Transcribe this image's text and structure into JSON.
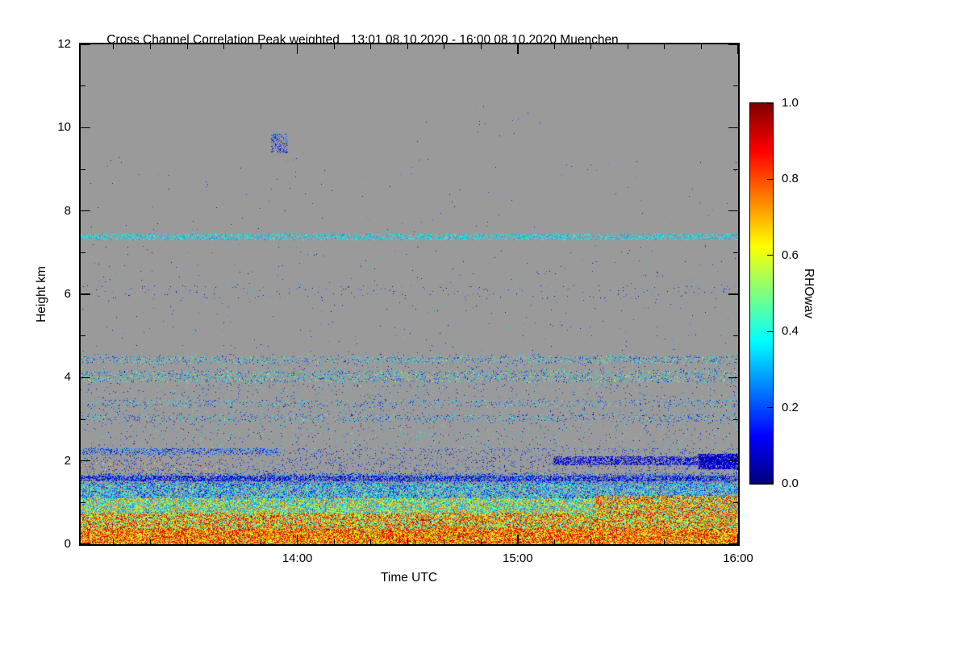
{
  "chart_data": {
    "type": "heatmap",
    "title": "Cross Channel Correlation Peak weighted",
    "title_right": "13:01 08.10.2020 - 16:00 08.10.2020 Muenchen",
    "xlabel": "Time UTC",
    "ylabel": "Height km",
    "x_range_minutes": [
      0,
      179
    ],
    "x_start_label": "13:01",
    "x_ticks": [
      {
        "label": "14:00",
        "minute": 59
      },
      {
        "label": "15:00",
        "minute": 119
      },
      {
        "label": "16:00",
        "minute": 179
      }
    ],
    "x_minor_every_minutes": 10,
    "y_range_km": [
      0,
      12
    ],
    "y_ticks": [
      "0",
      "2",
      "4",
      "6",
      "8",
      "10",
      "12"
    ],
    "y_tick_values": [
      0,
      2,
      4,
      6,
      8,
      10,
      12
    ],
    "y_minor_every_km": 1,
    "grid": false,
    "background_color": "#9a9a9a",
    "colorbar": {
      "label": "RHOwav",
      "colormap": "jet",
      "vmin": 0.0,
      "vmax": 1.0,
      "ticks": [
        "1.0",
        "0.8",
        "0.6",
        "0.4",
        "0.2",
        "0.0"
      ]
    },
    "bands": [
      {
        "name": "mid-upper-sparse",
        "y_min": 4.6,
        "y_max": 7.2,
        "density": 0.004,
        "v_min": 0.0,
        "v_max": 0.4
      },
      {
        "name": "upper-sparse",
        "y_min": 7.5,
        "y_max": 9.3,
        "density": 0.0015,
        "v_min": 0.0,
        "v_max": 0.35
      },
      {
        "name": "high-dots",
        "x_min": 0.5,
        "x_max": 0.72,
        "y_min": 9.6,
        "y_max": 10.6,
        "density": 0.002,
        "v_min": 0.05,
        "v_max": 0.3
      },
      {
        "name": "cluster-9-6km",
        "x_min": 0.29,
        "x_max": 0.315,
        "y_min": 9.4,
        "y_max": 9.85,
        "density": 0.3,
        "v_min": 0.0,
        "v_max": 0.3
      },
      {
        "name": "line-7-35km",
        "y_min": 7.3,
        "y_max": 7.45,
        "density": 0.38,
        "v_min": 0.25,
        "v_max": 0.45
      },
      {
        "name": "dots-6km",
        "y_min": 5.9,
        "y_max": 6.2,
        "density": 0.015,
        "v_min": 0.0,
        "v_max": 0.35
      },
      {
        "name": "scatter-2-3-to-4-6",
        "y_min": 2.3,
        "y_max": 4.55,
        "density": 0.03,
        "v_min": 0.0,
        "v_max": 0.5
      },
      {
        "name": "line-4-4km",
        "y_min": 4.35,
        "y_max": 4.5,
        "density": 0.16,
        "v_min": 0.1,
        "v_max": 0.55
      },
      {
        "name": "line-4-0km",
        "y_min": 3.9,
        "y_max": 4.15,
        "density": 0.18,
        "v_min": 0.1,
        "v_max": 0.6
      },
      {
        "name": "line-3-35km",
        "y_min": 3.3,
        "y_max": 3.45,
        "density": 0.1,
        "v_min": 0.05,
        "v_max": 0.5
      },
      {
        "name": "line-3-0km",
        "y_min": 2.95,
        "y_max": 3.1,
        "density": 0.12,
        "v_min": 0.05,
        "v_max": 0.5
      },
      {
        "name": "sparse-1-7-to-2-3",
        "y_min": 1.7,
        "y_max": 2.3,
        "density": 0.07,
        "v_min": 0.0,
        "v_max": 0.3
      },
      {
        "name": "line-2-2km-left",
        "x_min": 0.0,
        "x_max": 0.3,
        "y_min": 2.15,
        "y_max": 2.3,
        "density": 0.28,
        "v_min": 0.05,
        "v_max": 0.35
      },
      {
        "name": "streak-2km-right",
        "x_min": 0.72,
        "x_max": 1.0,
        "y_min": 1.9,
        "y_max": 2.1,
        "density": 0.5,
        "v_min": 0.0,
        "v_max": 0.18
      },
      {
        "name": "blob-2km-far-right",
        "x_min": 0.94,
        "x_max": 1.0,
        "y_min": 1.8,
        "y_max": 2.15,
        "density": 0.75,
        "v_min": 0.0,
        "v_max": 0.15
      },
      {
        "name": "left-warm-specks",
        "x_min": 0.0,
        "x_max": 0.22,
        "y_min": 1.35,
        "y_max": 1.95,
        "density": 0.05,
        "v_min": 0.45,
        "v_max": 1.0
      },
      {
        "name": "band-1-45-to-1-7",
        "y_min": 1.45,
        "y_max": 1.7,
        "density": 0.3,
        "v_min": 0.02,
        "v_max": 0.4
      },
      {
        "name": "dark-line-1-55",
        "y_min": 1.52,
        "y_max": 1.64,
        "density": 0.45,
        "v_min": 0.0,
        "v_max": 0.2
      },
      {
        "name": "band-1-1-to-1-45",
        "y_min": 1.1,
        "y_max": 1.45,
        "density": 0.55,
        "v_min": 0.08,
        "v_max": 0.55
      },
      {
        "name": "band-0-75-to-1-1",
        "y_min": 0.75,
        "y_max": 1.1,
        "density": 0.8,
        "v_min": 0.2,
        "v_max": 0.8
      },
      {
        "name": "right-warm-boost",
        "x_min": 0.78,
        "x_max": 1.0,
        "y_min": 0.5,
        "y_max": 1.15,
        "density": 0.55,
        "v_min": 0.5,
        "v_max": 1.0
      },
      {
        "name": "band-0-35-to-0-75",
        "y_min": 0.35,
        "y_max": 0.75,
        "density": 0.92,
        "v_min": 0.35,
        "v_max": 1.0
      },
      {
        "name": "band-0-to-0-35",
        "y_min": 0.0,
        "y_max": 0.35,
        "density": 0.97,
        "v_min": 0.5,
        "v_max": 1.0
      }
    ]
  }
}
